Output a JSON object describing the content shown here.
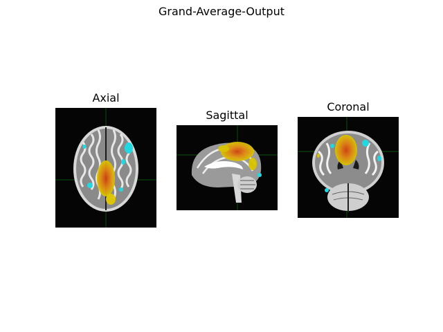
{
  "figure": {
    "title": "Grand-Average-Output"
  },
  "panels": [
    {
      "title": "Axial",
      "view": "axial"
    },
    {
      "title": "Sagittal",
      "view": "sagittal"
    },
    {
      "title": "Coronal",
      "view": "coronal"
    }
  ],
  "colors": {
    "background": "#050505",
    "crosshair": "#0f6b0f",
    "activation_positive": "#e8d000",
    "activation_strong": "#e05010",
    "activation_negative": "#22d8e0"
  }
}
